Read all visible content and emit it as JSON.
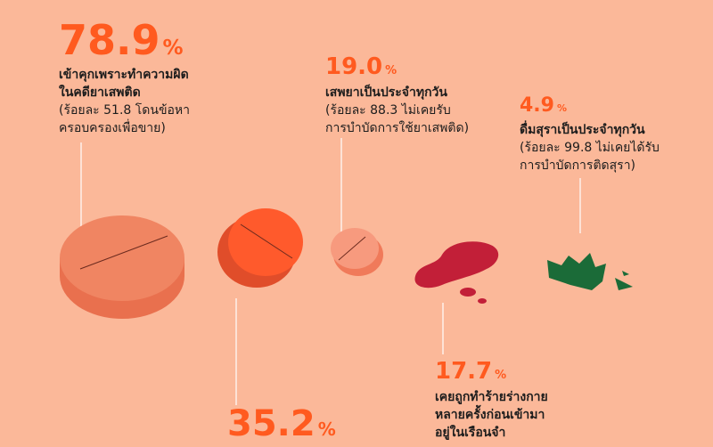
{
  "items": [
    {
      "value": "78.9",
      "unit": "%",
      "title": [
        "เข้าคุกเพราะทำความผิด",
        "ในคดียาเสพติด"
      ],
      "sub": [
        "(ร้อยละ 51.8 โดนข้อหา",
        "ครอบครองเพื่อขาย)"
      ]
    },
    {
      "value": "35.2",
      "unit": "%",
      "title": [],
      "sub": []
    },
    {
      "value": "19.0",
      "unit": "%",
      "title": [
        "เสพยาเป็นประจำทุกวัน"
      ],
      "sub": [
        "(ร้อยละ 88.3 ไม่เคยรับ",
        "การบำบัดการใช้ยาเสพติด)"
      ]
    },
    {
      "value": "4.9",
      "unit": "%",
      "title": [
        "ดื่มสุราเป็นประจำทุกวัน"
      ],
      "sub": [
        "(ร้อยละ 99.8 ไม่เคยได้รับ",
        "การบำบัดการติดสุรา)"
      ]
    },
    {
      "value": "17.7",
      "unit": "%",
      "title": [
        "เคยถูกทำร้ายร่างกาย",
        "หลายครั้งก่อนเข้ามา",
        "อยู่ในเรือนจำ"
      ],
      "sub": []
    }
  ]
}
